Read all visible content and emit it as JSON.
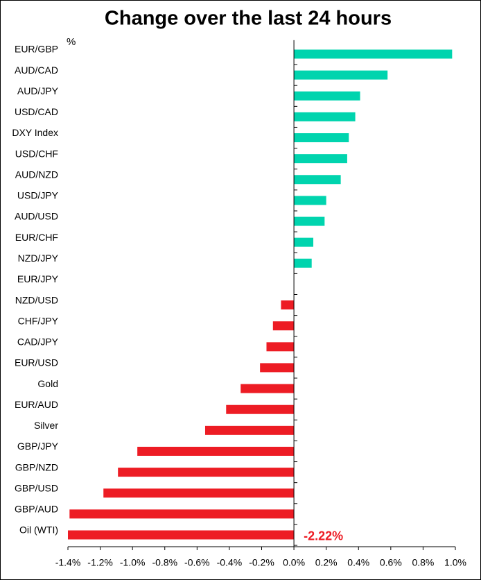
{
  "chart_data": {
    "type": "hbar",
    "title": "Change over the last 24 hours",
    "unit_label": "%",
    "categories": [
      "EUR/GBP",
      "AUD/CAD",
      "AUD/JPY",
      "USD/CAD",
      "DXY Index",
      "USD/CHF",
      "AUD/NZD",
      "USD/JPY",
      "AUD/USD",
      "EUR/CHF",
      "NZD/JPY",
      "EUR/JPY",
      "NZD/USD",
      "CHF/JPY",
      "CAD/JPY",
      "EUR/USD",
      "Gold",
      "EUR/AUD",
      "Silver",
      "GBP/JPY",
      "GBP/NZD",
      "GBP/USD",
      "GBP/AUD",
      "Oil (WTI)"
    ],
    "values": [
      0.98,
      0.58,
      0.41,
      0.38,
      0.34,
      0.33,
      0.29,
      0.2,
      0.19,
      0.12,
      0.11,
      0,
      -0.08,
      -0.13,
      -0.17,
      -0.21,
      -0.33,
      -0.42,
      -0.55,
      -0.97,
      -1.09,
      -1.18,
      -1.39,
      -2.22
    ],
    "value_labels": [
      null,
      null,
      null,
      null,
      null,
      null,
      null,
      null,
      null,
      null,
      null,
      null,
      null,
      null,
      null,
      null,
      null,
      null,
      null,
      null,
      null,
      null,
      null,
      "-2.22%"
    ],
    "positive_color": "#00d4ae",
    "negative_color": "#ed1c24",
    "xlim": [
      -1.4,
      1.0
    ],
    "xticks": [
      {
        "value": -1.4,
        "label": "-1.4%"
      },
      {
        "value": -1.2,
        "label": "-1.2%"
      },
      {
        "value": -1.0,
        "label": "-1.0%"
      },
      {
        "value": -0.8,
        "label": "-0.8%"
      },
      {
        "value": -0.6,
        "label": "-0.6%"
      },
      {
        "value": -0.4,
        "label": "-0.4%"
      },
      {
        "value": -0.2,
        "label": "-0.2%"
      },
      {
        "value": 0,
        "label": "0.0%"
      },
      {
        "value": 0.2,
        "label": "0.2%"
      },
      {
        "value": 0.4,
        "label": "0.4%"
      },
      {
        "value": 0.6,
        "label": "0.6%"
      },
      {
        "value": 0.8,
        "label": "0.8%"
      },
      {
        "value": 1.0,
        "label": "1.0%"
      }
    ]
  }
}
